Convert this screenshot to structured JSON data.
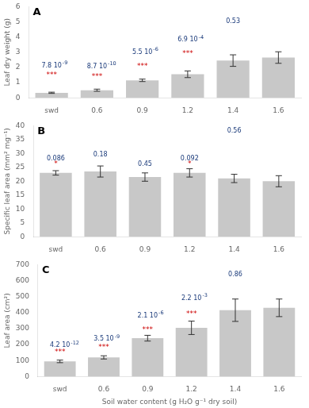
{
  "chart_data": [
    {
      "type": "bar",
      "title": "A",
      "ylabel": "Leaf dry weight (g)",
      "categories": [
        "swd",
        "0.6",
        "0.9",
        "1.2",
        "1.4",
        "1.6"
      ],
      "values": [
        0.33,
        0.5,
        1.15,
        1.55,
        2.45,
        2.65
      ],
      "errors": [
        0.04,
        0.07,
        0.08,
        0.22,
        0.38,
        0.38
      ],
      "color": "#c8c8c8",
      "ylim": [
        0,
        6
      ],
      "yticks": [
        0,
        1,
        2,
        3,
        4,
        5,
        6
      ],
      "grid": false,
      "p_values": {
        "color": "#1a3a7a",
        "items": [
          {
            "x": "swd",
            "y": 1.9,
            "text": "7.8 10",
            "exponent": "-9"
          },
          {
            "x": "0.6",
            "y": 1.85,
            "text": "8.7 10",
            "exponent": "-10"
          },
          {
            "x": "0.9",
            "y": 2.8,
            "text": "5.5 10",
            "exponent": "-6"
          },
          {
            "x": "1.2",
            "y": 3.6,
            "text": "6.9 10",
            "exponent": "-4"
          },
          {
            "x": "1.4",
            "y": 4.8,
            "text": "0.53"
          }
        ]
      },
      "stars": {
        "color": "#cc0000",
        "items": [
          {
            "x": "swd",
            "y": 1.35,
            "text": "***"
          },
          {
            "x": "0.6",
            "y": 1.25,
            "text": "***"
          },
          {
            "x": "0.9",
            "y": 1.95,
            "text": "***"
          },
          {
            "x": "1.2",
            "y": 2.8,
            "text": "***"
          }
        ]
      }
    },
    {
      "type": "bar",
      "title": "B",
      "ylabel": "Specific leaf area (mm² mg⁻¹)",
      "categories": [
        "swd",
        "0.6",
        "0.9",
        "1.2",
        "1.4",
        "1.6"
      ],
      "values": [
        23.0,
        23.5,
        21.5,
        23.0,
        21.0,
        20.0
      ],
      "errors": [
        0.8,
        2.0,
        1.5,
        1.5,
        1.5,
        2.0
      ],
      "color": "#c8c8c8",
      "ylim": [
        0,
        40
      ],
      "yticks": [
        0,
        5,
        10,
        15,
        20,
        25,
        30,
        35,
        40
      ],
      "grid": false,
      "p_values": {
        "color": "#1a3a7a",
        "items": [
          {
            "x": "swd",
            "y": 27.0,
            "text": "0.086"
          },
          {
            "x": "0.6",
            "y": 28.5,
            "text": "0.18"
          },
          {
            "x": "0.9",
            "y": 25.0,
            "text": "0.45"
          },
          {
            "x": "1.2",
            "y": 27.0,
            "text": "0.092"
          },
          {
            "x": "1.4",
            "y": 37.0,
            "text": "0.56"
          }
        ]
      },
      "stars": {
        "color": "#cc0000",
        "items": [
          {
            "x": "swd",
            "y": 25.5,
            "text": "*"
          },
          {
            "x": "1.2",
            "y": 25.5,
            "text": "*"
          }
        ]
      }
    },
    {
      "type": "bar",
      "title": "C",
      "ylabel": "Leaf area (cm²)",
      "xlabel": "Soil water content (g H₂O g⁻¹ dry soil)",
      "categories": [
        "swd",
        "0.6",
        "0.9",
        "1.2",
        "1.4",
        "1.6"
      ],
      "values": [
        95,
        120,
        240,
        305,
        415,
        430
      ],
      "errors": [
        8,
        10,
        18,
        42,
        70,
        55
      ],
      "color": "#c8c8c8",
      "ylim": [
        0,
        700
      ],
      "yticks": [
        0,
        100,
        200,
        300,
        400,
        500,
        600,
        700
      ],
      "grid": false,
      "p_values": {
        "color": "#1a3a7a",
        "items": [
          {
            "x": "swd",
            "y": 175,
            "text": "4.2 10",
            "exponent": "-12"
          },
          {
            "x": "0.6",
            "y": 215,
            "text": "3.5 10",
            "exponent": "-9"
          },
          {
            "x": "0.9",
            "y": 360,
            "text": "2.1 10",
            "exponent": "-6"
          },
          {
            "x": "1.2",
            "y": 470,
            "text": "2.2 10",
            "exponent": "-3"
          },
          {
            "x": "1.4",
            "y": 620,
            "text": "0.86"
          }
        ]
      },
      "stars": {
        "color": "#cc0000",
        "items": [
          {
            "x": "swd",
            "y": 140,
            "text": "***"
          },
          {
            "x": "0.6",
            "y": 170,
            "text": "***"
          },
          {
            "x": "0.9",
            "y": 280,
            "text": "***"
          },
          {
            "x": "1.2",
            "y": 380,
            "text": "***"
          }
        ]
      }
    }
  ]
}
